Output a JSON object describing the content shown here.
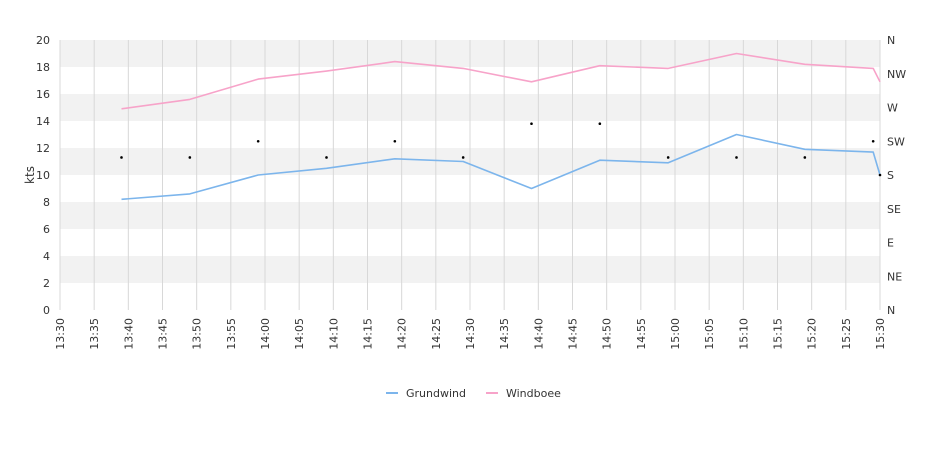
{
  "chart_data": {
    "type": "line",
    "ylabel": "kts",
    "ylim": [
      0,
      20
    ],
    "y_ticks": [
      0,
      2,
      4,
      6,
      8,
      10,
      12,
      14,
      16,
      18,
      20
    ],
    "x_ticks": [
      "13:30",
      "13:35",
      "13:40",
      "13:45",
      "13:50",
      "13:55",
      "14:00",
      "14:05",
      "14:10",
      "14:15",
      "14:20",
      "14:25",
      "14:30",
      "14:35",
      "14:40",
      "14:45",
      "14:50",
      "14:55",
      "15:00",
      "15:05",
      "15:10",
      "15:15",
      "15:20",
      "15:25",
      "15:30"
    ],
    "right_axis": {
      "labels": [
        "N",
        "NE",
        "E",
        "SE",
        "S",
        "SW",
        "W",
        "NW",
        "N"
      ],
      "range_degrees": [
        0,
        360
      ]
    },
    "grid": true,
    "legend_position": "bottom",
    "series": [
      {
        "name": "Grundwind",
        "color": "#7cb5ec",
        "points": [
          [
            "13:39",
            8.2
          ],
          [
            "13:49",
            8.6
          ],
          [
            "13:59",
            10.0
          ],
          [
            "14:09",
            10.5
          ],
          [
            "14:19",
            11.2
          ],
          [
            "14:29",
            11.0
          ],
          [
            "14:39",
            9.0
          ],
          [
            "14:49",
            11.1
          ],
          [
            "14:59",
            10.9
          ],
          [
            "15:09",
            13.0
          ],
          [
            "15:19",
            11.9
          ],
          [
            "15:29",
            11.7
          ],
          [
            "15:30",
            10.0
          ]
        ]
      },
      {
        "name": "Windboee",
        "color": "#f7a3c9",
        "points": [
          [
            "13:39",
            14.9
          ],
          [
            "13:49",
            15.6
          ],
          [
            "13:59",
            17.1
          ],
          [
            "14:09",
            17.7
          ],
          [
            "14:19",
            18.4
          ],
          [
            "14:29",
            17.9
          ],
          [
            "14:39",
            16.9
          ],
          [
            "14:49",
            18.1
          ],
          [
            "14:59",
            17.9
          ],
          [
            "15:09",
            19.0
          ],
          [
            "15:19",
            18.2
          ],
          [
            "15:29",
            17.9
          ],
          [
            "15:30",
            16.9
          ]
        ]
      }
    ],
    "direction_points": [
      [
        "13:39",
        11.3
      ],
      [
        "13:49",
        11.3
      ],
      [
        "13:59",
        12.5
      ],
      [
        "14:09",
        11.3
      ],
      [
        "14:19",
        12.5
      ],
      [
        "14:29",
        11.3
      ],
      [
        "14:39",
        13.8
      ],
      [
        "14:49",
        13.8
      ],
      [
        "14:59",
        11.3
      ],
      [
        "15:09",
        11.3
      ],
      [
        "15:19",
        11.3
      ],
      [
        "15:29",
        12.5
      ],
      [
        "15:30",
        10.0
      ]
    ]
  }
}
